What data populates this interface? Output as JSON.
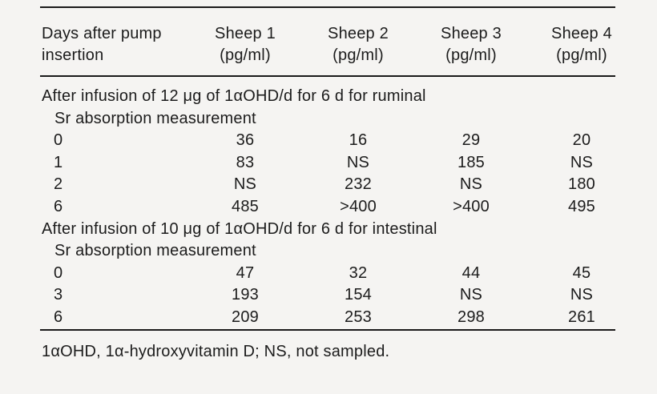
{
  "page": {
    "background_color": "#f5f4f2",
    "text_color": "#1c1c1c",
    "rule_color": "#1a1a1a"
  },
  "table": {
    "header": {
      "row_label_line1": "Days after pump",
      "row_label_line2": "insertion",
      "columns": [
        {
          "name": "Sheep 1",
          "unit": "(pg/ml)"
        },
        {
          "name": "Sheep 2",
          "unit": "(pg/ml)"
        },
        {
          "name": "Sheep 3",
          "unit": "(pg/ml)"
        },
        {
          "name": "Sheep 4",
          "unit": "(pg/ml)"
        }
      ]
    },
    "sections": [
      {
        "title": "After infusion of 12 μg of 1αOHD/d for 6 d for ruminal",
        "subtitle": "Sr absorption measurement",
        "rows": [
          {
            "day": "0",
            "values": [
              "36",
              "16",
              "29",
              "20"
            ]
          },
          {
            "day": "1",
            "values": [
              "83",
              "NS",
              "185",
              "NS"
            ]
          },
          {
            "day": "2",
            "values": [
              "NS",
              "232",
              "NS",
              "180"
            ]
          },
          {
            "day": "6",
            "values": [
              "485",
              ">400",
              ">400",
              "495"
            ]
          }
        ]
      },
      {
        "title": "After infusion of 10 μg of 1αOHD/d for 6 d for intestinal",
        "subtitle": "Sr absorption measurement",
        "rows": [
          {
            "day": "0",
            "values": [
              "47",
              "32",
              "44",
              "45"
            ]
          },
          {
            "day": "3",
            "values": [
              "193",
              "154",
              "NS",
              "NS"
            ]
          },
          {
            "day": "6",
            "values": [
              "209",
              "253",
              "298",
              "261"
            ]
          }
        ]
      }
    ],
    "footnote": "1αOHD, 1α-hydroxyvitamin D; NS, not sampled."
  }
}
